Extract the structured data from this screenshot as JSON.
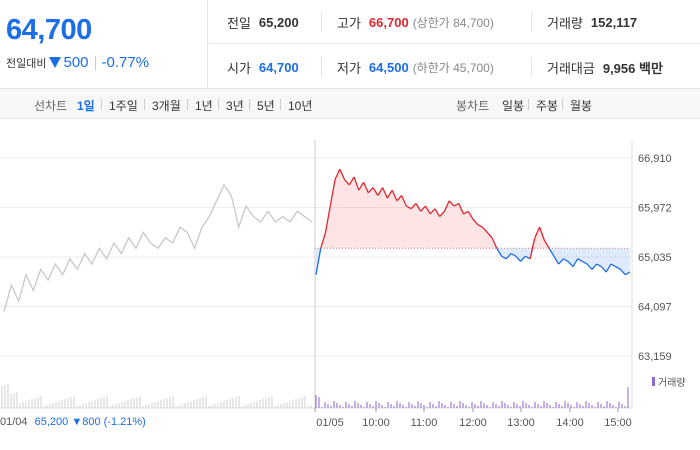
{
  "price": {
    "current": "64,700",
    "change_label": "전일대비",
    "change_icon": "down-triangle-icon",
    "change_value": "500",
    "change_rate": "-0.77%"
  },
  "info": {
    "prev_close": {
      "label": "전일",
      "value": "65,200"
    },
    "high": {
      "label": "고가",
      "value": "66,700",
      "sub": "(상한가 84,700)"
    },
    "volume": {
      "label": "거래량",
      "value": "152,117"
    },
    "open": {
      "label": "시가",
      "value": "64,700"
    },
    "low": {
      "label": "저가",
      "value": "64,500",
      "sub": "(하한가 45,700)"
    },
    "trade_amount": {
      "label": "거래대금",
      "value": "9,956 백만"
    }
  },
  "toolbar": {
    "line_chart_label": "선차트",
    "periods": [
      "1일",
      "1주일",
      "3개월",
      "1년",
      "3년",
      "5년",
      "10년"
    ],
    "active_period": "1일",
    "candle_chart_label": "봉차트",
    "candles": [
      "일봉",
      "주봉",
      "월봉"
    ]
  },
  "colors": {
    "up": "#e0262e",
    "down": "#1a6ee6",
    "prev_day": "#c8c8c8",
    "volume": "#8a66d6"
  },
  "chart_data": {
    "type": "line",
    "y_ticks": [
      "66,910",
      "65,972",
      "65,035",
      "64,097",
      "63,159"
    ],
    "ylim": [
      63159,
      66910
    ],
    "baseline": 65200,
    "x_ticks": [
      "01/05",
      "10:00",
      "11:00",
      "12:00",
      "13:00",
      "14:00",
      "15:00"
    ],
    "prev_day_label": "01/04",
    "prev_day_summary": {
      "close": "65,200",
      "change": "800",
      "rate": "(-1.21%)"
    },
    "volume_legend": "거래량",
    "series": [
      {
        "values": [
          64000,
          64500,
          64200,
          64700,
          64400,
          64800,
          64600,
          64900,
          64700,
          65000,
          64800,
          65100,
          64900,
          65200,
          65000,
          65300,
          65100,
          65400,
          65200,
          65500,
          65300,
          65200,
          65400,
          65300,
          65600,
          65500,
          65200,
          65600,
          65800,
          66100,
          66400,
          66200,
          65600,
          66000,
          65800,
          65700,
          65900,
          65700,
          65800,
          65700,
          65900,
          65800,
          65700
        ]
      },
      {
        "values": [
          64700,
          65200,
          65500,
          66000,
          66500,
          66700,
          66500,
          66400,
          66550,
          66300,
          66450,
          66250,
          66350,
          66200,
          66350,
          66150,
          66300,
          66100,
          66200,
          66000,
          65950,
          66050,
          65900,
          66000,
          65850,
          65950,
          65800,
          65900,
          66100,
          66000,
          66050,
          65850,
          65900,
          65750,
          65650,
          65600,
          65500,
          65400,
          65200,
          65050,
          65000,
          65100,
          65050,
          64950,
          65050,
          65000,
          65400,
          65600,
          65350,
          65200,
          65050,
          64900,
          65000,
          64950,
          64850,
          65000,
          64950,
          64900,
          64800,
          64900,
          64850,
          64750,
          64900,
          64850,
          64800,
          64700,
          64750
        ]
      }
    ]
  }
}
